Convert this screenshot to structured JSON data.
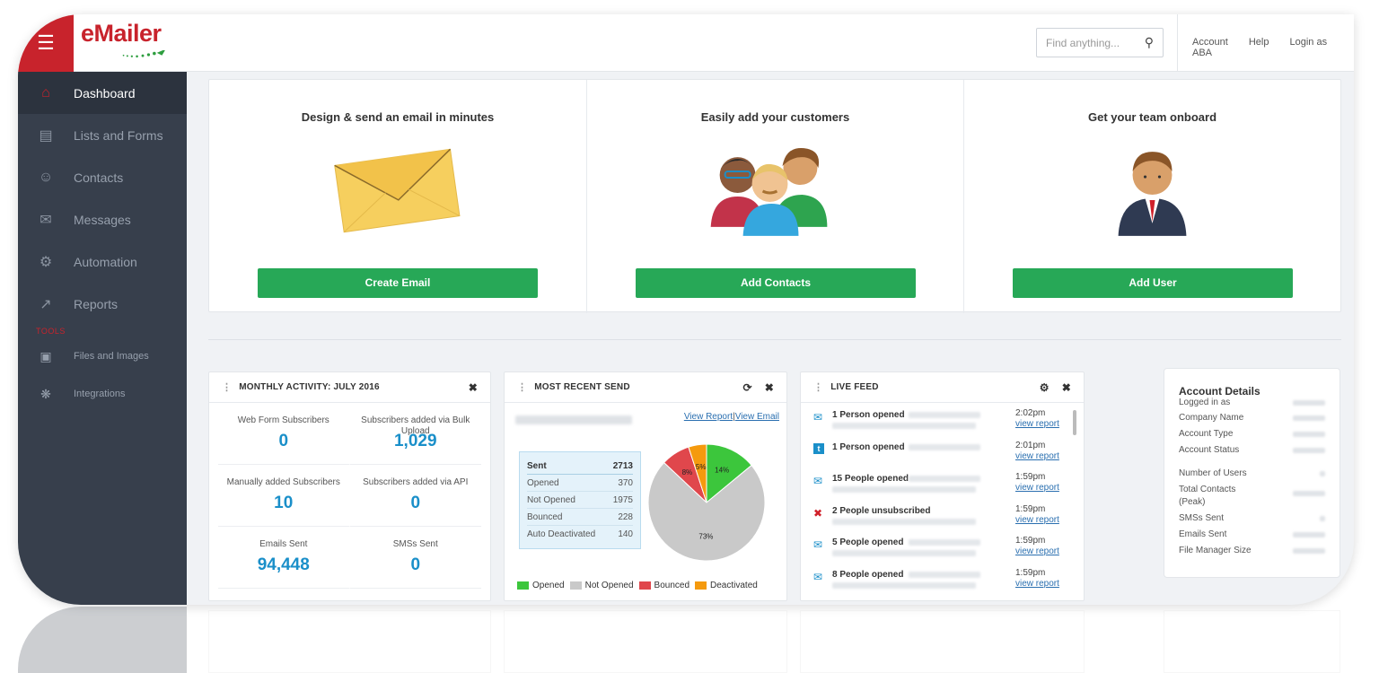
{
  "app": {
    "logo_text": "eMailer",
    "menu_icon": "hamburger-icon"
  },
  "topbar": {
    "search_placeholder": "Find anything...",
    "links": [
      "Account",
      "Help",
      "Login as ABA"
    ]
  },
  "sidebar": {
    "items": [
      {
        "label": "Dashboard",
        "icon": "home-icon",
        "active": true
      },
      {
        "label": "Lists and Forms",
        "icon": "database-icon"
      },
      {
        "label": "Contacts",
        "icon": "user-icon"
      },
      {
        "label": "Messages",
        "icon": "envelope-icon"
      },
      {
        "label": "Automation",
        "icon": "gear-icon"
      },
      {
        "label": "Reports",
        "icon": "chart-icon"
      }
    ],
    "tools_label": "TOOLS",
    "tools": [
      {
        "label": "Files and Images",
        "icon": "image-icon"
      },
      {
        "label": "Integrations",
        "icon": "integrations-icon"
      }
    ]
  },
  "promo": [
    {
      "title": "Design & send an email in minutes",
      "button": "Create Email"
    },
    {
      "title": "Easily add your customers",
      "button": "Add Contacts"
    },
    {
      "title": "Get your team onboard",
      "button": "Add User"
    }
  ],
  "monthly": {
    "title": "MONTHLY ACTIVITY: JULY 2016",
    "stats": [
      {
        "label": "Web Form Subscribers",
        "value": "0"
      },
      {
        "label": "Subscribers added via Bulk Upload",
        "value": "1,029"
      },
      {
        "label": "Manually added Subscribers",
        "value": "10"
      },
      {
        "label": "Subscribers added via API",
        "value": "0"
      },
      {
        "label": "Emails Sent",
        "value": "94,448"
      },
      {
        "label": "SMSs Sent",
        "value": "0"
      }
    ]
  },
  "recent": {
    "title": "MOST RECENT SEND",
    "view_report": "View Report",
    "separator": "|",
    "view_email": "View Email",
    "table": [
      {
        "label": "Sent",
        "value": "2713"
      },
      {
        "label": "Opened",
        "value": "370"
      },
      {
        "label": "Not Opened",
        "value": "1975"
      },
      {
        "label": "Bounced",
        "value": "228"
      },
      {
        "label": "Auto Deactivated",
        "value": "140"
      }
    ],
    "legend": [
      "Opened",
      "Not Opened",
      "Bounced",
      "Deactivated"
    ],
    "colors": [
      "#3cc63c",
      "#c9c9c9",
      "#e0474c",
      "#f59a0e"
    ]
  },
  "chart_data": {
    "type": "pie",
    "categories": [
      "Opened",
      "Not Opened",
      "Bounced",
      "Deactivated"
    ],
    "values": [
      14,
      73,
      8,
      5
    ],
    "labels": [
      "14%",
      "73%",
      "8%",
      "5%"
    ]
  },
  "feed": {
    "title": "LIVE FEED",
    "items": [
      {
        "text": "1 Person opened",
        "time": "2:02pm",
        "link": "view report",
        "icon": "envelope-icon"
      },
      {
        "text": "1 Person opened",
        "time": "2:01pm",
        "link": "view report",
        "icon": "twitter-icon"
      },
      {
        "text": "15 People opened",
        "time": "1:59pm",
        "link": "view report",
        "icon": "envelope-icon"
      },
      {
        "text": "2 People unsubscribed",
        "time": "1:59pm",
        "link": "view report",
        "icon": "unsubscribe-icon"
      },
      {
        "text": "5 People opened",
        "time": "1:59pm",
        "link": "view report",
        "icon": "envelope-icon"
      },
      {
        "text": "8 People opened",
        "time": "1:59pm",
        "link": "view report",
        "icon": "envelope-icon"
      }
    ]
  },
  "account": {
    "title": "Account Details",
    "rows": [
      "Logged in as",
      "Company Name",
      "Account Type",
      "Account Status"
    ],
    "rows2": [
      "Number of Users",
      "Total Contacts (Peak)",
      "SMSs Sent",
      "Emails Sent",
      "File Manager Size"
    ]
  }
}
